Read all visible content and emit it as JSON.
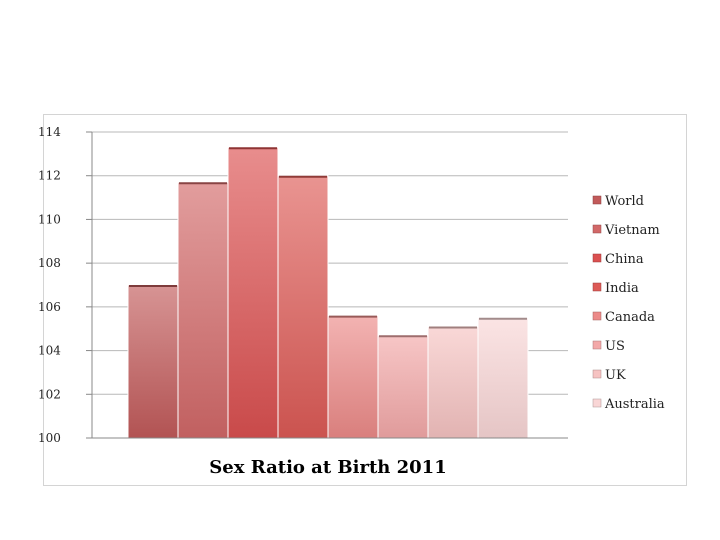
{
  "chart_data": {
    "type": "bar",
    "title": "Sex Ratio at Birth 2011",
    "xlabel": "",
    "ylabel": "",
    "ylim": [
      100,
      114
    ],
    "yticks": [
      100,
      102,
      104,
      106,
      108,
      110,
      112,
      114
    ],
    "grid": true,
    "legend_position": "right",
    "series": [
      {
        "name": "World",
        "value": 107,
        "color": "#c25a5a"
      },
      {
        "name": "Vietnam",
        "value": 111.7,
        "color": "#d26868"
      },
      {
        "name": "China",
        "value": 113.3,
        "color": "#db5050"
      },
      {
        "name": "India",
        "value": 112,
        "color": "#dd5a56"
      },
      {
        "name": "Canada",
        "value": 105.6,
        "color": "#ec8a88"
      },
      {
        "name": "US",
        "value": 104.7,
        "color": "#f3a8a8"
      },
      {
        "name": "UK",
        "value": 105.1,
        "color": "#f6c3c2"
      },
      {
        "name": "Australia",
        "value": 105.5,
        "color": "#f9d6d6"
      }
    ]
  }
}
